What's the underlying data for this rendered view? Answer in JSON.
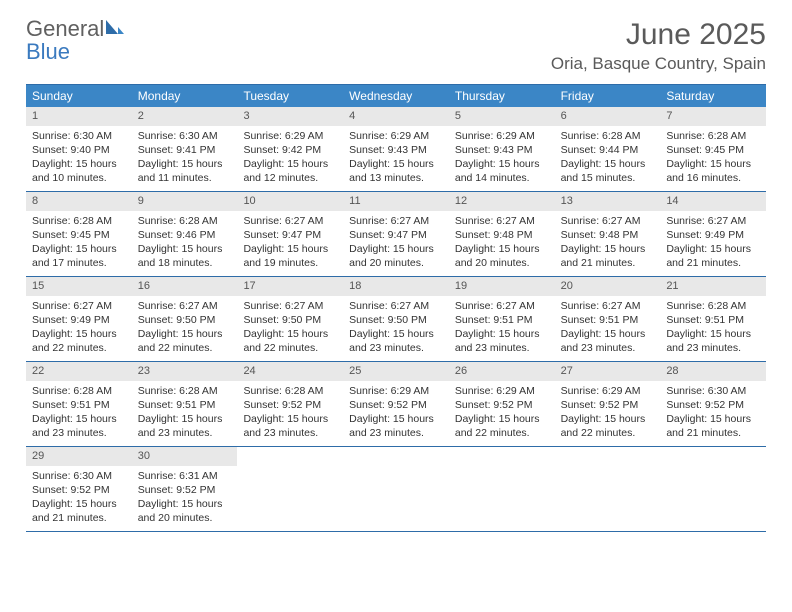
{
  "logo": {
    "general": "General",
    "blue": "Blue"
  },
  "title": "June 2025",
  "location": "Oria, Basque Country, Spain",
  "colors": {
    "header_bg": "#3b86c6",
    "border": "#2e6ca8",
    "daynum_bg": "#e8e8e8",
    "text": "#333333",
    "title": "#5a5a5a"
  },
  "weekdays": [
    "Sunday",
    "Monday",
    "Tuesday",
    "Wednesday",
    "Thursday",
    "Friday",
    "Saturday"
  ],
  "weeks": [
    [
      {
        "n": "1",
        "sr": "6:30 AM",
        "ss": "9:40 PM",
        "dl": "15 hours and 10 minutes."
      },
      {
        "n": "2",
        "sr": "6:30 AM",
        "ss": "9:41 PM",
        "dl": "15 hours and 11 minutes."
      },
      {
        "n": "3",
        "sr": "6:29 AM",
        "ss": "9:42 PM",
        "dl": "15 hours and 12 minutes."
      },
      {
        "n": "4",
        "sr": "6:29 AM",
        "ss": "9:43 PM",
        "dl": "15 hours and 13 minutes."
      },
      {
        "n": "5",
        "sr": "6:29 AM",
        "ss": "9:43 PM",
        "dl": "15 hours and 14 minutes."
      },
      {
        "n": "6",
        "sr": "6:28 AM",
        "ss": "9:44 PM",
        "dl": "15 hours and 15 minutes."
      },
      {
        "n": "7",
        "sr": "6:28 AM",
        "ss": "9:45 PM",
        "dl": "15 hours and 16 minutes."
      }
    ],
    [
      {
        "n": "8",
        "sr": "6:28 AM",
        "ss": "9:45 PM",
        "dl": "15 hours and 17 minutes."
      },
      {
        "n": "9",
        "sr": "6:28 AM",
        "ss": "9:46 PM",
        "dl": "15 hours and 18 minutes."
      },
      {
        "n": "10",
        "sr": "6:27 AM",
        "ss": "9:47 PM",
        "dl": "15 hours and 19 minutes."
      },
      {
        "n": "11",
        "sr": "6:27 AM",
        "ss": "9:47 PM",
        "dl": "15 hours and 20 minutes."
      },
      {
        "n": "12",
        "sr": "6:27 AM",
        "ss": "9:48 PM",
        "dl": "15 hours and 20 minutes."
      },
      {
        "n": "13",
        "sr": "6:27 AM",
        "ss": "9:48 PM",
        "dl": "15 hours and 21 minutes."
      },
      {
        "n": "14",
        "sr": "6:27 AM",
        "ss": "9:49 PM",
        "dl": "15 hours and 21 minutes."
      }
    ],
    [
      {
        "n": "15",
        "sr": "6:27 AM",
        "ss": "9:49 PM",
        "dl": "15 hours and 22 minutes."
      },
      {
        "n": "16",
        "sr": "6:27 AM",
        "ss": "9:50 PM",
        "dl": "15 hours and 22 minutes."
      },
      {
        "n": "17",
        "sr": "6:27 AM",
        "ss": "9:50 PM",
        "dl": "15 hours and 22 minutes."
      },
      {
        "n": "18",
        "sr": "6:27 AM",
        "ss": "9:50 PM",
        "dl": "15 hours and 23 minutes."
      },
      {
        "n": "19",
        "sr": "6:27 AM",
        "ss": "9:51 PM",
        "dl": "15 hours and 23 minutes."
      },
      {
        "n": "20",
        "sr": "6:27 AM",
        "ss": "9:51 PM",
        "dl": "15 hours and 23 minutes."
      },
      {
        "n": "21",
        "sr": "6:28 AM",
        "ss": "9:51 PM",
        "dl": "15 hours and 23 minutes."
      }
    ],
    [
      {
        "n": "22",
        "sr": "6:28 AM",
        "ss": "9:51 PM",
        "dl": "15 hours and 23 minutes."
      },
      {
        "n": "23",
        "sr": "6:28 AM",
        "ss": "9:51 PM",
        "dl": "15 hours and 23 minutes."
      },
      {
        "n": "24",
        "sr": "6:28 AM",
        "ss": "9:52 PM",
        "dl": "15 hours and 23 minutes."
      },
      {
        "n": "25",
        "sr": "6:29 AM",
        "ss": "9:52 PM",
        "dl": "15 hours and 23 minutes."
      },
      {
        "n": "26",
        "sr": "6:29 AM",
        "ss": "9:52 PM",
        "dl": "15 hours and 22 minutes."
      },
      {
        "n": "27",
        "sr": "6:29 AM",
        "ss": "9:52 PM",
        "dl": "15 hours and 22 minutes."
      },
      {
        "n": "28",
        "sr": "6:30 AM",
        "ss": "9:52 PM",
        "dl": "15 hours and 21 minutes."
      }
    ],
    [
      {
        "n": "29",
        "sr": "6:30 AM",
        "ss": "9:52 PM",
        "dl": "15 hours and 21 minutes."
      },
      {
        "n": "30",
        "sr": "6:31 AM",
        "ss": "9:52 PM",
        "dl": "15 hours and 20 minutes."
      },
      null,
      null,
      null,
      null,
      null
    ]
  ],
  "labels": {
    "sunrise": "Sunrise: ",
    "sunset": "Sunset: ",
    "daylight": "Daylight: "
  }
}
